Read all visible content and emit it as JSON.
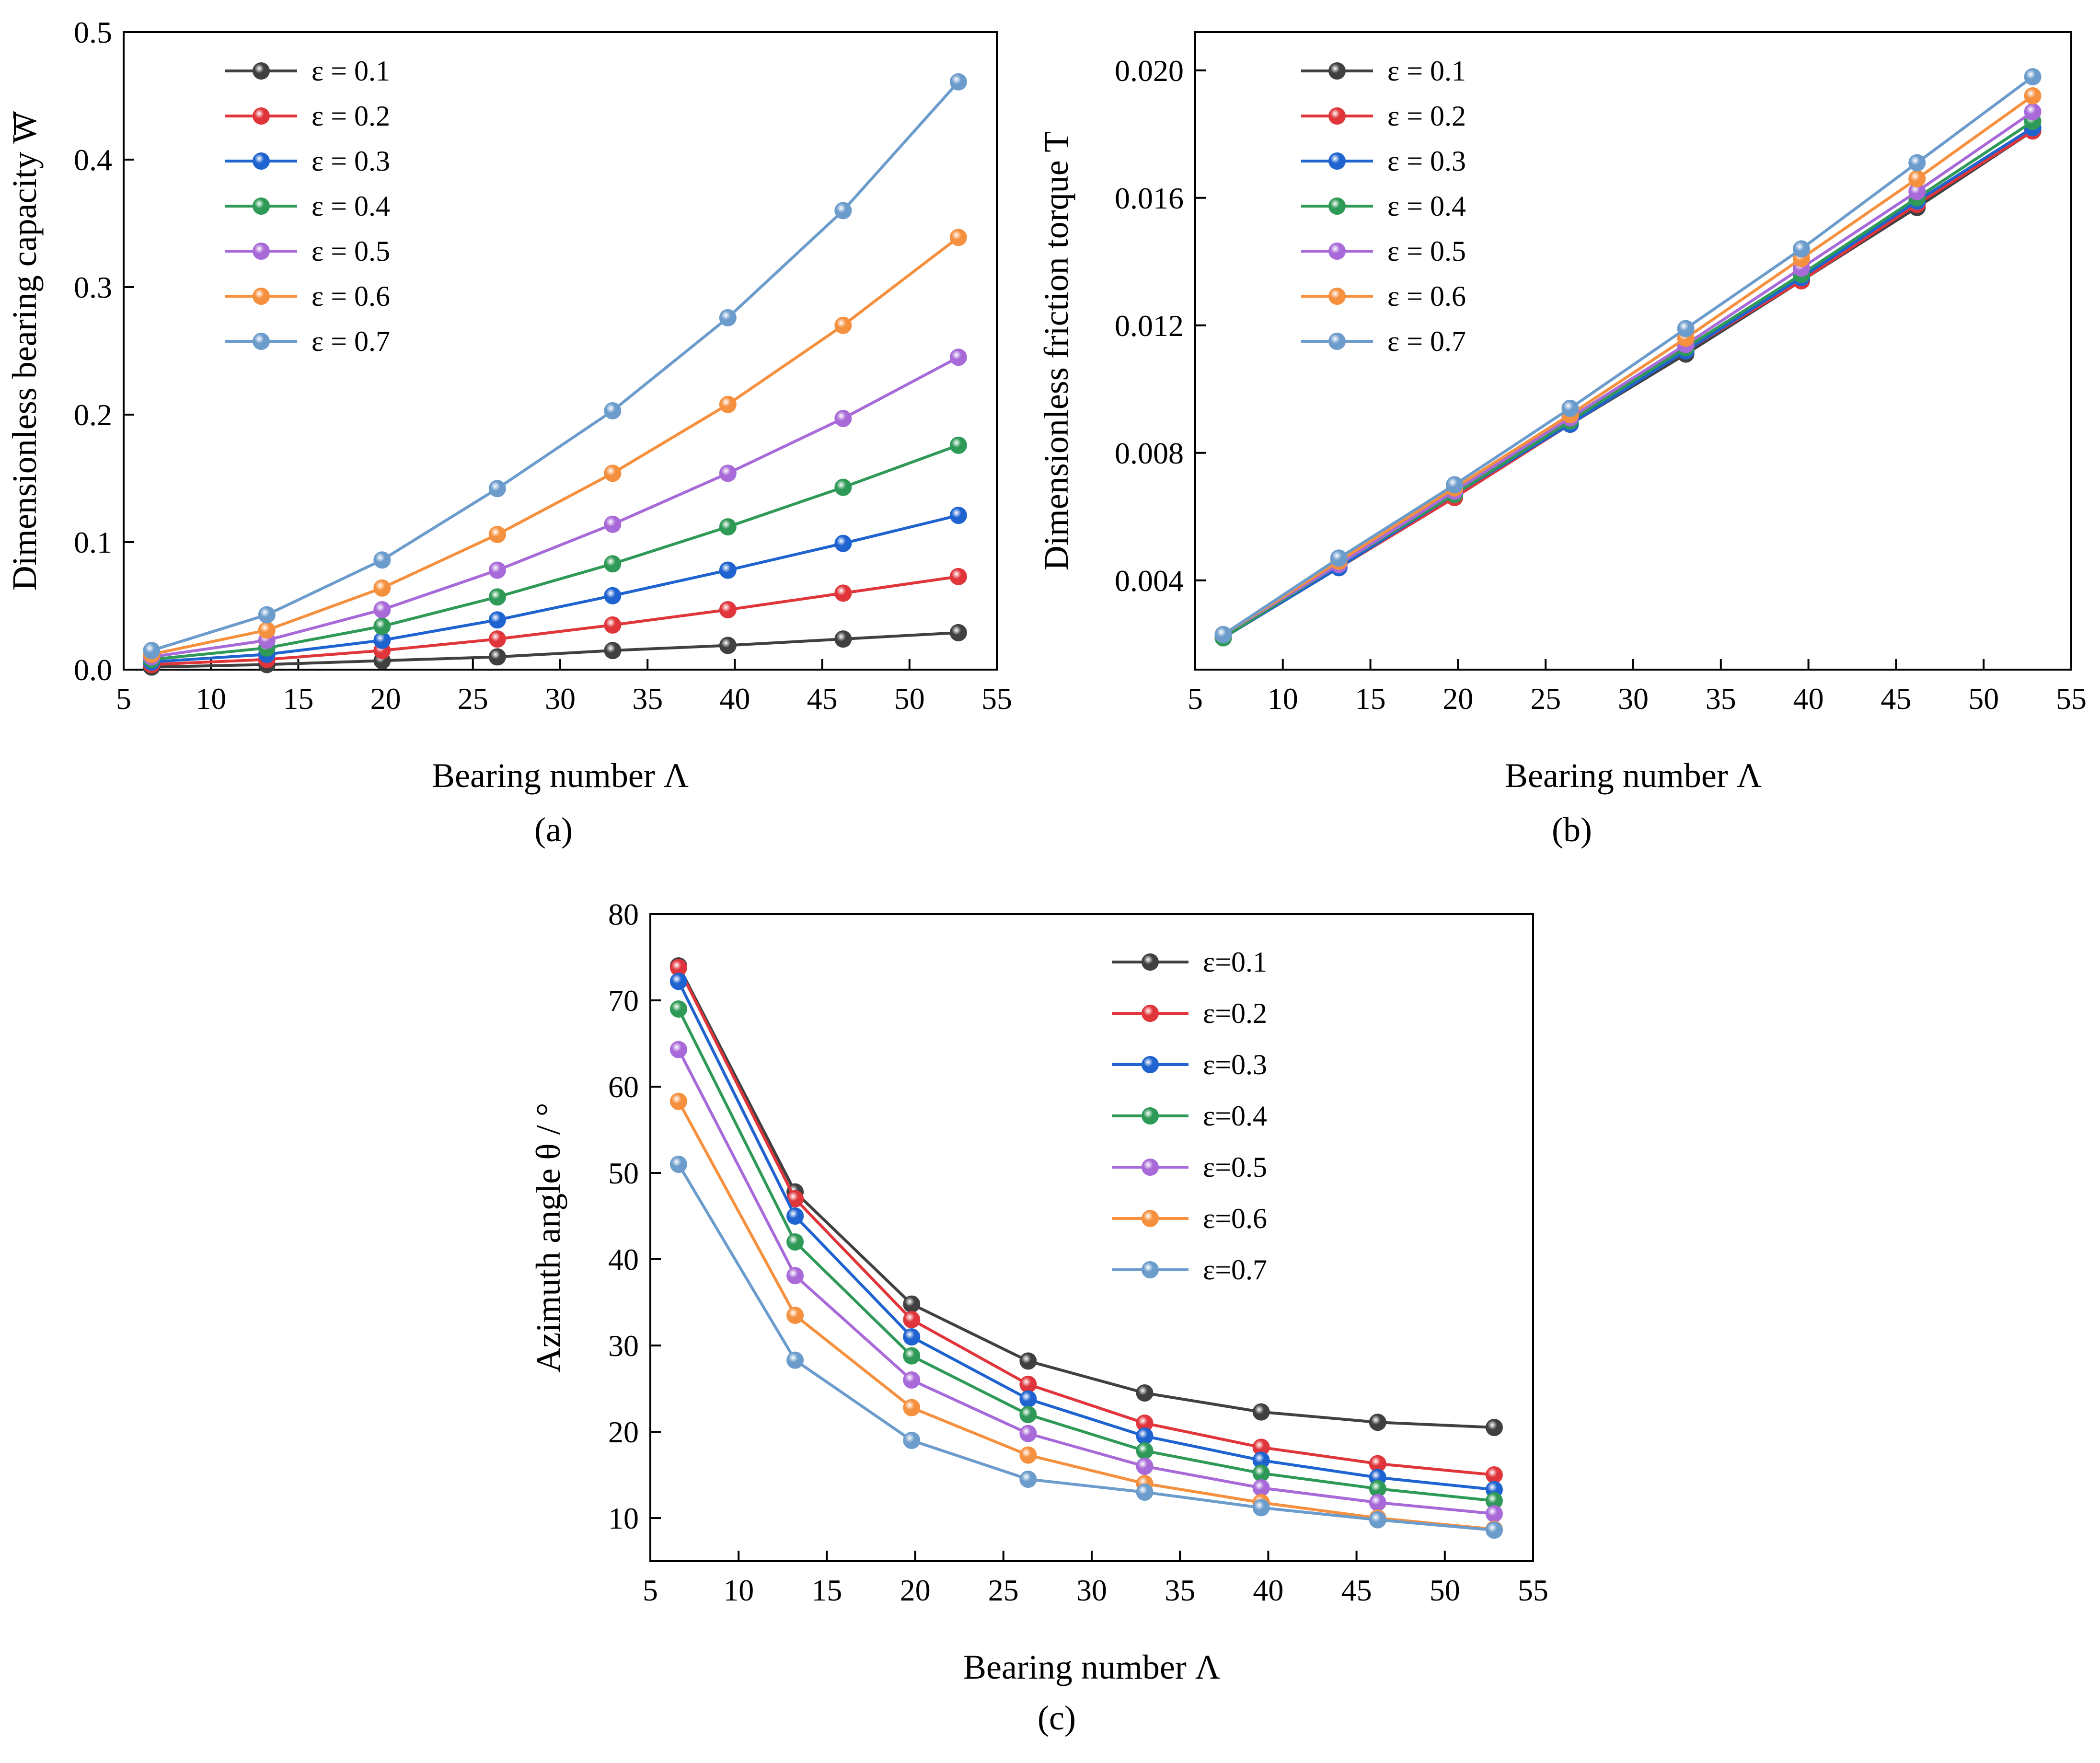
{
  "colors": [
    "#404040",
    "#e0363b",
    "#1e63cf",
    "#2f9a57",
    "#a86ad8",
    "#f5903f",
    "#6c9ccc"
  ],
  "chart_data": [
    {
      "type": "line",
      "panel": "a",
      "caption": "(a)",
      "xlabel": "Bearing number Λ",
      "ylabel": "Dimensionless bearing capacity W",
      "xlim": [
        5,
        55
      ],
      "ylim": [
        0,
        0.5
      ],
      "xticks": [
        "5",
        "10",
        "15",
        "20",
        "25",
        "30",
        "35",
        "40",
        "45",
        "50",
        "55"
      ],
      "yticks": [
        "0.0",
        "0.1",
        "0.2",
        "0.3",
        "0.4",
        "0.5"
      ],
      "legend_position": "top-left",
      "x": [
        6.6,
        13.2,
        19.8,
        26.4,
        33.0,
        39.6,
        46.2,
        52.8
      ],
      "series": [
        {
          "name": "ε = 0.1",
          "values": [
            0.002,
            0.004,
            0.007,
            0.01,
            0.015,
            0.019,
            0.024,
            0.029
          ]
        },
        {
          "name": "ε = 0.2",
          "values": [
            0.004,
            0.008,
            0.015,
            0.024,
            0.035,
            0.047,
            0.06,
            0.073
          ]
        },
        {
          "name": "ε = 0.3",
          "values": [
            0.006,
            0.012,
            0.023,
            0.039,
            0.058,
            0.078,
            0.099,
            0.121
          ]
        },
        {
          "name": "ε = 0.4",
          "values": [
            0.008,
            0.017,
            0.034,
            0.057,
            0.083,
            0.112,
            0.143,
            0.176
          ]
        },
        {
          "name": "ε = 0.5",
          "values": [
            0.01,
            0.023,
            0.047,
            0.078,
            0.114,
            0.154,
            0.197,
            0.245
          ]
        },
        {
          "name": "ε = 0.6",
          "values": [
            0.012,
            0.031,
            0.064,
            0.106,
            0.154,
            0.208,
            0.27,
            0.339
          ]
        },
        {
          "name": "ε = 0.7",
          "values": [
            0.015,
            0.043,
            0.086,
            0.142,
            0.203,
            0.276,
            0.36,
            0.461
          ]
        }
      ]
    },
    {
      "type": "line",
      "panel": "b",
      "caption": "(b)",
      "xlabel": "Bearing number Λ",
      "ylabel": "Dimensionless friction torque T",
      "xlim": [
        5,
        55
      ],
      "ylim": [
        0.0012,
        0.0212
      ],
      "xticks": [
        "5",
        "10",
        "15",
        "20",
        "25",
        "30",
        "35",
        "40",
        "45",
        "50",
        "55"
      ],
      "yticks": [
        "0.004",
        "0.008",
        "0.012",
        "0.016",
        "0.020"
      ],
      "legend_position": "top-left",
      "x": [
        6.6,
        13.2,
        19.8,
        26.4,
        33.0,
        39.6,
        46.2,
        52.8
      ],
      "series": [
        {
          "name": "ε = 0.1",
          "values": [
            0.0022,
            0.0044,
            0.0066,
            0.0089,
            0.0111,
            0.0134,
            0.0157,
            0.0181
          ]
        },
        {
          "name": "ε = 0.2",
          "values": [
            0.0022,
            0.0044,
            0.0066,
            0.0089,
            0.0112,
            0.0134,
            0.0158,
            0.0181
          ]
        },
        {
          "name": "ε = 0.3",
          "values": [
            0.0022,
            0.0044,
            0.0067,
            0.0089,
            0.0112,
            0.0135,
            0.0159,
            0.0182
          ]
        },
        {
          "name": "ε = 0.4",
          "values": [
            0.0022,
            0.0045,
            0.0067,
            0.009,
            0.0113,
            0.0136,
            0.016,
            0.0184
          ]
        },
        {
          "name": "ε = 0.5",
          "values": [
            0.0023,
            0.0045,
            0.0068,
            0.0091,
            0.0114,
            0.0138,
            0.0162,
            0.0187
          ]
        },
        {
          "name": "ε = 0.6",
          "values": [
            0.0023,
            0.0046,
            0.0069,
            0.0092,
            0.0116,
            0.0141,
            0.0166,
            0.0192
          ]
        },
        {
          "name": "ε = 0.7",
          "values": [
            0.0023,
            0.0047,
            0.007,
            0.0094,
            0.0119,
            0.0144,
            0.0171,
            0.0198
          ]
        }
      ]
    },
    {
      "type": "line",
      "panel": "c",
      "caption": "(c)",
      "xlabel": "Bearing number Λ",
      "ylabel": "Azimuth angle θ / °",
      "xlim": [
        5,
        55
      ],
      "ylim": [
        5,
        80
      ],
      "xticks": [
        "5",
        "10",
        "15",
        "20",
        "25",
        "30",
        "35",
        "40",
        "45",
        "50",
        "55"
      ],
      "yticks": [
        "10",
        "20",
        "30",
        "40",
        "50",
        "60",
        "70",
        "80"
      ],
      "legend_position": "top-right",
      "x": [
        6.6,
        13.2,
        19.8,
        26.4,
        33.0,
        39.6,
        46.2,
        52.8
      ],
      "series": [
        {
          "name": "ε=0.1",
          "values": [
            74.0,
            47.8,
            34.8,
            28.2,
            24.5,
            22.3,
            21.1,
            20.5
          ]
        },
        {
          "name": "ε=0.2",
          "values": [
            73.8,
            47.0,
            33.0,
            25.5,
            21.0,
            18.2,
            16.3,
            15.0
          ]
        },
        {
          "name": "ε=0.3",
          "values": [
            72.2,
            45.0,
            31.0,
            23.8,
            19.5,
            16.7,
            14.7,
            13.3
          ]
        },
        {
          "name": "ε=0.4",
          "values": [
            69.0,
            42.0,
            28.8,
            22.0,
            17.8,
            15.2,
            13.4,
            12.0
          ]
        },
        {
          "name": "ε=0.5",
          "values": [
            64.3,
            38.1,
            26.0,
            19.8,
            16.0,
            13.5,
            11.8,
            10.5
          ]
        },
        {
          "name": "ε=0.6",
          "values": [
            58.3,
            33.5,
            22.8,
            17.3,
            14.0,
            11.8,
            10.0,
            8.7
          ]
        },
        {
          "name": "ε=0.7",
          "values": [
            51.0,
            28.3,
            19.0,
            14.5,
            13.0,
            11.2,
            9.8,
            8.6
          ]
        }
      ]
    }
  ]
}
